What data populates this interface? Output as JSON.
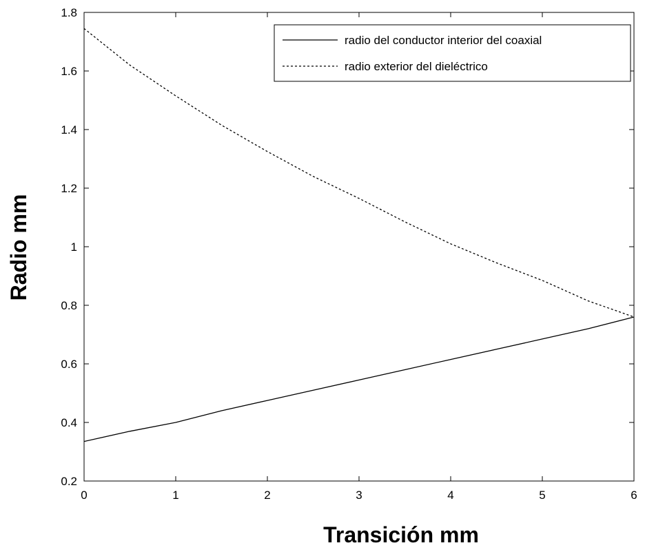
{
  "chart_data": {
    "type": "line",
    "xlabel": "Transición mm",
    "ylabel": "Radio mm",
    "xlim": [
      0,
      6
    ],
    "ylim": [
      0.2,
      1.8
    ],
    "xticks": [
      0,
      1,
      2,
      3,
      4,
      5,
      6
    ],
    "xtick_labels": [
      "0",
      "1",
      "2",
      "3",
      "4",
      "5",
      "6"
    ],
    "yticks": [
      0.2,
      0.4,
      0.6,
      0.8,
      1.0,
      1.2,
      1.4,
      1.6,
      1.8
    ],
    "ytick_labels": [
      "0.2",
      "0.4",
      "0.6",
      "0.8",
      "1",
      "1.2",
      "1.4",
      "1.6",
      "1.8"
    ],
    "grid": false,
    "legend_position": "top-right",
    "series": [
      {
        "name": "radio del conductor interior del coaxial",
        "style": "solid",
        "color": "#000000",
        "x": [
          0,
          0.5,
          1,
          1.5,
          2,
          2.5,
          3,
          3.5,
          4,
          4.5,
          5,
          5.5,
          6
        ],
        "y": [
          0.335,
          0.37,
          0.4,
          0.44,
          0.475,
          0.51,
          0.545,
          0.58,
          0.615,
          0.65,
          0.685,
          0.72,
          0.76
        ]
      },
      {
        "name": "radio exterior del dieléctrico",
        "style": "dashed",
        "color": "#000000",
        "x": [
          0,
          0.5,
          1,
          1.5,
          2,
          2.5,
          3,
          3.5,
          4,
          4.5,
          5,
          5.5,
          6
        ],
        "y": [
          1.745,
          1.62,
          1.515,
          1.415,
          1.325,
          1.24,
          1.165,
          1.085,
          1.01,
          0.945,
          0.885,
          0.815,
          0.76
        ]
      }
    ]
  }
}
